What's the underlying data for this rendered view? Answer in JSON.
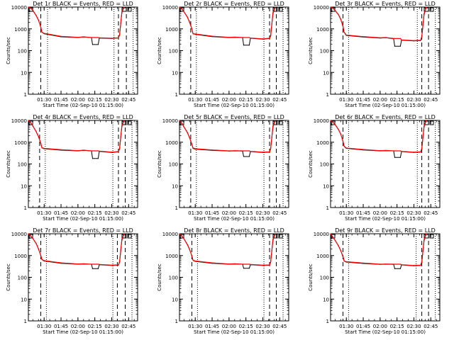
{
  "shared": {
    "xlabel": "Start Time (02-Sep-10 01:15:00)",
    "ylabel": "Counts/sec",
    "x_tick_labels": [
      "01:30",
      "01:45",
      "02:00",
      "02:15",
      "02:30",
      "02:45"
    ],
    "y_tick_labels": [
      "1",
      "10",
      "100",
      "1000",
      "10000"
    ],
    "colors": {
      "events": "#000000",
      "lld": "#ff0000"
    }
  },
  "chart_data": [
    {
      "type": "line",
      "title": "Det 1r BLACK = Events, RED = LLD",
      "y_scale": "log",
      "ylim": [
        1,
        10000
      ],
      "xlim": [
        "01:16",
        "02:53"
      ],
      "x": [
        "01:16",
        "01:18",
        "01:20",
        "01:23",
        "01:25",
        "01:27",
        "01:28",
        "01:30",
        "01:45",
        "02:00",
        "02:05",
        "02:12",
        "02:13",
        "02:18",
        "02:19",
        "02:30",
        "02:36",
        "02:37",
        "02:39",
        "02:41"
      ],
      "series": [
        {
          "name": "Events",
          "values": [
            10000,
            9000,
            7000,
            4000,
            2500,
            1200,
            700,
            600,
            430,
            400,
            420,
            400,
            190,
            190,
            380,
            360,
            380,
            520,
            5500,
            10000
          ]
        },
        {
          "name": "LLD",
          "values": [
            10000,
            9000,
            7000,
            4000,
            2500,
            1200,
            700,
            620,
            450,
            410,
            430,
            400,
            400,
            400,
            390,
            370,
            390,
            560,
            6000,
            10000
          ]
        }
      ],
      "vlines": [
        {
          "x": "01:27",
          "style": "dashed"
        },
        {
          "x": "01:33",
          "style": "dotted"
        },
        {
          "x": "02:32",
          "style": "dotted"
        },
        {
          "x": "02:36",
          "style": "dashed"
        },
        {
          "x": "02:43",
          "style": "dashed"
        },
        {
          "x": "02:49",
          "style": "dotted"
        }
      ]
    },
    {
      "type": "line",
      "title": "Det 2r BLACK = Events, RED = LLD",
      "y_scale": "log",
      "ylim": [
        1,
        10000
      ],
      "xlim": [
        "01:16",
        "02:53"
      ],
      "x": [
        "01:16",
        "01:18",
        "01:20",
        "01:23",
        "01:25",
        "01:27",
        "01:28",
        "01:30",
        "01:45",
        "02:00",
        "02:05",
        "02:12",
        "02:13",
        "02:18",
        "02:19",
        "02:30",
        "02:36",
        "02:37",
        "02:39",
        "02:41"
      ],
      "series": [
        {
          "name": "Events",
          "values": [
            10000,
            8500,
            6000,
            3500,
            2000,
            1000,
            600,
            560,
            440,
            400,
            410,
            400,
            180,
            180,
            370,
            340,
            360,
            480,
            5000,
            10000
          ]
        },
        {
          "name": "LLD",
          "values": [
            10000,
            8500,
            6000,
            3500,
            2000,
            1000,
            600,
            580,
            460,
            410,
            420,
            400,
            400,
            400,
            380,
            350,
            370,
            520,
            5500,
            10000
          ]
        }
      ],
      "vlines": [
        {
          "x": "01:26",
          "style": "dashed"
        },
        {
          "x": "01:31",
          "style": "dotted"
        },
        {
          "x": "02:31",
          "style": "dotted"
        },
        {
          "x": "02:36",
          "style": "dashed"
        },
        {
          "x": "02:42",
          "style": "dashed"
        },
        {
          "x": "02:48",
          "style": "dotted"
        }
      ]
    },
    {
      "type": "line",
      "title": "Det 3r BLACK = Events, RED = LLD",
      "y_scale": "log",
      "ylim": [
        1,
        10000
      ],
      "xlim": [
        "01:16",
        "02:53"
      ],
      "x": [
        "01:16",
        "01:18",
        "01:20",
        "01:23",
        "01:25",
        "01:27",
        "01:28",
        "01:30",
        "01:45",
        "02:00",
        "02:05",
        "02:12",
        "02:13",
        "02:18",
        "02:19",
        "02:30",
        "02:36",
        "02:37",
        "02:39",
        "02:41"
      ],
      "series": [
        {
          "name": "Events",
          "values": [
            10000,
            9000,
            7000,
            4500,
            2800,
            1300,
            700,
            500,
            420,
            380,
            390,
            350,
            160,
            160,
            300,
            280,
            290,
            420,
            4500,
            10000
          ]
        },
        {
          "name": "LLD",
          "values": [
            10000,
            9000,
            7000,
            4500,
            2800,
            1300,
            700,
            520,
            440,
            390,
            400,
            360,
            360,
            360,
            310,
            290,
            300,
            450,
            5000,
            10000
          ]
        }
      ],
      "vlines": [
        {
          "x": "01:27",
          "style": "dashed"
        },
        {
          "x": "01:32",
          "style": "dotted"
        },
        {
          "x": "02:33",
          "style": "dotted"
        },
        {
          "x": "02:37",
          "style": "dashed"
        },
        {
          "x": "02:43",
          "style": "dashed"
        },
        {
          "x": "02:49",
          "style": "dotted"
        }
      ]
    },
    {
      "type": "line",
      "title": "Det 4r BLACK = Events, RED = LLD",
      "y_scale": "log",
      "ylim": [
        1,
        10000
      ],
      "xlim": [
        "01:16",
        "02:53"
      ],
      "x": [
        "01:16",
        "01:18",
        "01:20",
        "01:23",
        "01:25",
        "01:27",
        "01:28",
        "01:30",
        "01:45",
        "02:00",
        "02:05",
        "02:12",
        "02:13",
        "02:18",
        "02:19",
        "02:30",
        "02:36",
        "02:37",
        "02:39",
        "02:41"
      ],
      "series": [
        {
          "name": "Events",
          "values": [
            10000,
            8000,
            5500,
            3000,
            1800,
            900,
            550,
            500,
            430,
            400,
            420,
            400,
            180,
            180,
            380,
            340,
            360,
            500,
            5200,
            10000
          ]
        },
        {
          "name": "LLD",
          "values": [
            10000,
            8000,
            5500,
            3000,
            1800,
            900,
            560,
            520,
            450,
            410,
            430,
            400,
            400,
            400,
            390,
            350,
            370,
            540,
            5600,
            10000
          ]
        }
      ],
      "vlines": [
        {
          "x": "01:26",
          "style": "dashed"
        },
        {
          "x": "01:31",
          "style": "dotted"
        },
        {
          "x": "02:31",
          "style": "dotted"
        },
        {
          "x": "02:36",
          "style": "dashed"
        },
        {
          "x": "02:42",
          "style": "dashed"
        },
        {
          "x": "02:48",
          "style": "dotted"
        }
      ]
    },
    {
      "type": "line",
      "title": "Det 5r BLACK = Events, RED = LLD",
      "y_scale": "log",
      "ylim": [
        1,
        10000
      ],
      "xlim": [
        "01:16",
        "02:53"
      ],
      "x": [
        "01:16",
        "01:18",
        "01:20",
        "01:23",
        "01:25",
        "01:27",
        "01:28",
        "01:30",
        "01:45",
        "02:00",
        "02:05",
        "02:12",
        "02:13",
        "02:18",
        "02:19",
        "02:30",
        "02:36",
        "02:37",
        "02:39",
        "02:41"
      ],
      "series": [
        {
          "name": "Events",
          "values": [
            10000,
            7500,
            5000,
            2800,
            1600,
            800,
            520,
            480,
            420,
            390,
            400,
            390,
            220,
            220,
            370,
            340,
            350,
            500,
            5000,
            10000
          ]
        },
        {
          "name": "LLD",
          "values": [
            10000,
            7500,
            5000,
            2800,
            1600,
            800,
            540,
            500,
            440,
            400,
            410,
            400,
            400,
            400,
            380,
            350,
            360,
            540,
            5500,
            10000
          ]
        }
      ],
      "vlines": [
        {
          "x": "01:26",
          "style": "dashed"
        },
        {
          "x": "01:31",
          "style": "dotted"
        },
        {
          "x": "02:31",
          "style": "dotted"
        },
        {
          "x": "02:36",
          "style": "dashed"
        },
        {
          "x": "02:42",
          "style": "dashed"
        },
        {
          "x": "02:48",
          "style": "dotted"
        }
      ]
    },
    {
      "type": "line",
      "title": "Det 6r BLACK = Events, RED = LLD",
      "y_scale": "log",
      "ylim": [
        1,
        10000
      ],
      "xlim": [
        "01:16",
        "02:53"
      ],
      "x": [
        "01:16",
        "01:18",
        "01:20",
        "01:23",
        "01:25",
        "01:27",
        "01:28",
        "01:30",
        "01:45",
        "02:00",
        "02:05",
        "02:12",
        "02:13",
        "02:18",
        "02:19",
        "02:30",
        "02:36",
        "02:37",
        "02:39",
        "02:41"
      ],
      "series": [
        {
          "name": "Events",
          "values": [
            10000,
            8500,
            6500,
            3800,
            2400,
            1100,
            650,
            520,
            440,
            400,
            410,
            400,
            200,
            200,
            370,
            340,
            350,
            480,
            5000,
            10000
          ]
        },
        {
          "name": "LLD",
          "values": [
            10000,
            8500,
            6500,
            3800,
            2400,
            1100,
            660,
            540,
            460,
            410,
            420,
            400,
            400,
            400,
            380,
            350,
            360,
            520,
            5500,
            10000
          ]
        }
      ],
      "vlines": [
        {
          "x": "01:27",
          "style": "dashed"
        },
        {
          "x": "01:32",
          "style": "dotted"
        },
        {
          "x": "02:33",
          "style": "dotted"
        },
        {
          "x": "02:37",
          "style": "dashed"
        },
        {
          "x": "02:43",
          "style": "dashed"
        },
        {
          "x": "02:49",
          "style": "dotted"
        }
      ]
    },
    {
      "type": "line",
      "title": "Det 7r BLACK = Events, RED = LLD",
      "y_scale": "log",
      "ylim": [
        1,
        10000
      ],
      "xlim": [
        "01:16",
        "02:53"
      ],
      "x": [
        "01:16",
        "01:18",
        "01:20",
        "01:23",
        "01:25",
        "01:27",
        "01:28",
        "01:30",
        "01:45",
        "02:00",
        "02:05",
        "02:12",
        "02:13",
        "02:18",
        "02:19",
        "02:30",
        "02:36",
        "02:37",
        "02:39",
        "02:41"
      ],
      "series": [
        {
          "name": "Events",
          "values": [
            10000,
            8000,
            6000,
            3500,
            2000,
            1000,
            650,
            560,
            440,
            400,
            410,
            400,
            250,
            250,
            380,
            350,
            360,
            500,
            5000,
            10000
          ]
        },
        {
          "name": "LLD",
          "values": [
            10000,
            8000,
            6000,
            3500,
            2000,
            1000,
            660,
            580,
            460,
            410,
            420,
            400,
            400,
            400,
            390,
            360,
            370,
            540,
            5500,
            10000
          ]
        }
      ],
      "vlines": [
        {
          "x": "01:27",
          "style": "dashed"
        },
        {
          "x": "01:32",
          "style": "dotted"
        },
        {
          "x": "02:31",
          "style": "dotted"
        },
        {
          "x": "02:35",
          "style": "dashed"
        },
        {
          "x": "02:42",
          "style": "dashed"
        },
        {
          "x": "02:48",
          "style": "dotted"
        }
      ]
    },
    {
      "type": "line",
      "title": "Det 8r BLACK = Events, RED = LLD",
      "y_scale": "log",
      "ylim": [
        1,
        10000
      ],
      "xlim": [
        "01:16",
        "02:53"
      ],
      "x": [
        "01:16",
        "01:18",
        "01:20",
        "01:23",
        "01:25",
        "01:27",
        "01:28",
        "01:30",
        "01:45",
        "02:00",
        "02:05",
        "02:12",
        "02:13",
        "02:18",
        "02:19",
        "02:30",
        "02:36",
        "02:37",
        "02:39",
        "02:41"
      ],
      "series": [
        {
          "name": "Events",
          "values": [
            10000,
            8000,
            5800,
            3200,
            1900,
            950,
            600,
            540,
            440,
            400,
            410,
            400,
            260,
            260,
            380,
            350,
            360,
            500,
            5000,
            10000
          ]
        },
        {
          "name": "LLD",
          "values": [
            10000,
            8000,
            5800,
            3200,
            1900,
            950,
            610,
            560,
            460,
            410,
            420,
            400,
            400,
            400,
            390,
            360,
            370,
            540,
            5500,
            10000
          ]
        }
      ],
      "vlines": [
        {
          "x": "01:27",
          "style": "dashed"
        },
        {
          "x": "01:32",
          "style": "dotted"
        },
        {
          "x": "02:31",
          "style": "dotted"
        },
        {
          "x": "02:36",
          "style": "dashed"
        },
        {
          "x": "02:42",
          "style": "dashed"
        },
        {
          "x": "02:48",
          "style": "dotted"
        }
      ]
    },
    {
      "type": "line",
      "title": "Det 9r BLACK = Events, RED = LLD",
      "y_scale": "log",
      "ylim": [
        1,
        10000
      ],
      "xlim": [
        "01:16",
        "02:53"
      ],
      "x": [
        "01:16",
        "01:18",
        "01:20",
        "01:23",
        "01:25",
        "01:27",
        "01:28",
        "01:30",
        "01:45",
        "02:00",
        "02:05",
        "02:12",
        "02:13",
        "02:18",
        "02:19",
        "02:30",
        "02:36",
        "02:37",
        "02:39",
        "02:41"
      ],
      "series": [
        {
          "name": "Events",
          "values": [
            10000,
            7000,
            5000,
            2800,
            1700,
            900,
            560,
            500,
            430,
            390,
            400,
            390,
            250,
            250,
            370,
            340,
            350,
            480,
            4800,
            10000
          ]
        },
        {
          "name": "LLD",
          "values": [
            10000,
            7000,
            5000,
            2800,
            1700,
            900,
            570,
            520,
            450,
            400,
            410,
            400,
            400,
            400,
            380,
            350,
            360,
            520,
            5300,
            10000
          ]
        }
      ],
      "vlines": [
        {
          "x": "01:27",
          "style": "dashed"
        },
        {
          "x": "01:32",
          "style": "dotted"
        },
        {
          "x": "02:32",
          "style": "dotted"
        },
        {
          "x": "02:37",
          "style": "dashed"
        },
        {
          "x": "02:43",
          "style": "dashed"
        },
        {
          "x": "02:49",
          "style": "dotted"
        }
      ]
    }
  ]
}
